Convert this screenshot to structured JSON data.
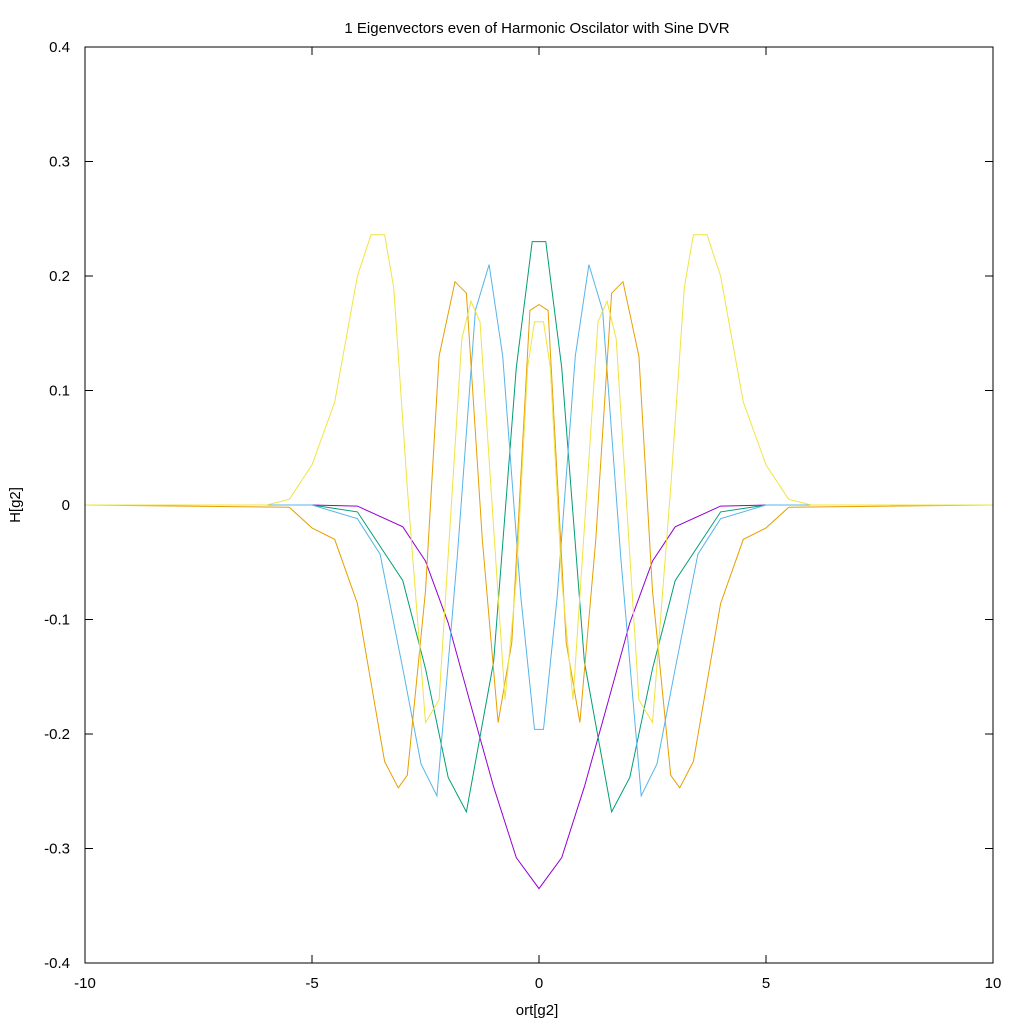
{
  "chart_data": {
    "type": "line",
    "title": "1 Eigenvectors even of Harmonic Oscilator with Sine DVR",
    "xlabel": "ort[g2]",
    "ylabel": "H[g2]",
    "xlim": [
      -10,
      10
    ],
    "ylim": [
      -0.4,
      0.4
    ],
    "x_ticks": [
      -10,
      -5,
      0,
      5,
      10
    ],
    "x_tick_labels": [
      "-10",
      "-5",
      "0",
      "5",
      "10"
    ],
    "y_ticks": [
      -0.4,
      -0.3,
      -0.2,
      -0.1,
      0,
      0.1,
      0.2,
      0.3,
      0.4
    ],
    "y_tick_labels": [
      "-0.4",
      "-0.3",
      "-0.2",
      "-0.1",
      "0",
      "0.1",
      "0.2",
      "0.3",
      "0.4"
    ],
    "grid": false,
    "legend": "none",
    "series": [
      {
        "color": "#9400d3",
        "x": [
          -10,
          -5,
          -4,
          -3,
          -2.5,
          -2,
          -1.5,
          -1,
          -0.5,
          0,
          0.5,
          1,
          1.5,
          2,
          2.5,
          3,
          4,
          5,
          10
        ],
        "y": [
          0,
          0,
          -0.001,
          -0.019,
          -0.049,
          -0.103,
          -0.175,
          -0.246,
          -0.308,
          -0.335,
          -0.308,
          -0.246,
          -0.175,
          -0.103,
          -0.049,
          -0.019,
          -0.001,
          0,
          0
        ]
      },
      {
        "color": "#009e73",
        "x": [
          -10,
          -5,
          -4,
          -3,
          -2.5,
          -2,
          -1.6,
          -1,
          -0.5,
          -0.15,
          0,
          0.15,
          0.5,
          1,
          1.6,
          2,
          2.5,
          3,
          4,
          5,
          10
        ],
        "y": [
          0,
          0,
          -0.006,
          -0.066,
          -0.143,
          -0.238,
          -0.268,
          -0.137,
          0.12,
          0.23,
          0.23,
          0.23,
          0.12,
          -0.137,
          -0.268,
          -0.238,
          -0.143,
          -0.066,
          -0.006,
          0,
          0
        ]
      },
      {
        "color": "#56b4e9",
        "x": [
          -10,
          -5,
          -4,
          -3.5,
          -3,
          -2.6,
          -2.25,
          -1.8,
          -1.4,
          -1.1,
          -0.8,
          -0.4,
          -0.1,
          0,
          0.1,
          0.4,
          0.8,
          1.1,
          1.4,
          1.8,
          2.25,
          2.6,
          3,
          3.5,
          4,
          5,
          10
        ],
        "y": [
          0,
          0,
          -0.012,
          -0.043,
          -0.143,
          -0.226,
          -0.254,
          -0.045,
          0.17,
          0.21,
          0.13,
          -0.08,
          -0.196,
          -0.196,
          -0.196,
          -0.08,
          0.13,
          0.21,
          0.17,
          -0.045,
          -0.254,
          -0.226,
          -0.143,
          -0.043,
          -0.012,
          0,
          0
        ]
      },
      {
        "color": "#e69f00",
        "x": [
          -10,
          -5.5,
          -5,
          -4.5,
          -4,
          -3.4,
          -3.1,
          -2.9,
          -2.5,
          -2.2,
          -1.85,
          -1.6,
          -1.25,
          -0.9,
          -0.6,
          -0.2,
          0,
          0.2,
          0.6,
          0.9,
          1.25,
          1.6,
          1.85,
          2.2,
          2.5,
          2.9,
          3.1,
          3.4,
          4,
          4.5,
          5,
          5.5,
          10
        ],
        "y": [
          0,
          -0.002,
          -0.02,
          -0.03,
          -0.086,
          -0.224,
          -0.247,
          -0.236,
          -0.075,
          0.13,
          0.195,
          0.185,
          -0.03,
          -0.19,
          -0.12,
          0.17,
          0.175,
          0.17,
          -0.12,
          -0.19,
          -0.03,
          0.185,
          0.195,
          0.13,
          -0.075,
          -0.236,
          -0.247,
          -0.224,
          -0.086,
          -0.03,
          -0.02,
          -0.002,
          0
        ]
      },
      {
        "color": "#f0e442",
        "x": [
          -10,
          -6,
          -5.5,
          -5,
          -4.5,
          -4,
          -3.7,
          -3.55,
          -3.4,
          -3.2,
          -2.9,
          -2.5,
          -2.2,
          -1.7,
          -1.5,
          -1.3,
          -0.75,
          -0.5,
          -0.25,
          -0.1,
          0,
          0.1,
          0.25,
          0.5,
          0.75,
          1.3,
          1.5,
          1.7,
          2.2,
          2.5,
          2.9,
          3.2,
          3.4,
          3.55,
          3.7,
          4,
          4.5,
          5,
          5.5,
          6,
          10
        ],
        "y": [
          0,
          0,
          0.005,
          0.035,
          0.09,
          0.2,
          0.236,
          0.236,
          0.236,
          0.19,
          0.015,
          -0.19,
          -0.17,
          0.145,
          0.178,
          0.16,
          -0.17,
          -0.065,
          0.12,
          0.16,
          0.16,
          0.16,
          0.12,
          -0.065,
          -0.17,
          0.16,
          0.178,
          0.145,
          -0.17,
          -0.19,
          0.015,
          0.19,
          0.236,
          0.236,
          0.236,
          0.2,
          0.09,
          0.035,
          0.005,
          0,
          0
        ]
      }
    ]
  }
}
